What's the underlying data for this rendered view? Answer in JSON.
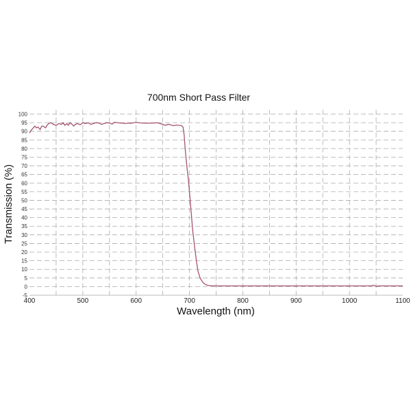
{
  "chart_data": {
    "type": "line",
    "title": "700nm Short Pass Filter",
    "xlabel": "Wavelength (nm)",
    "ylabel": "Transmission (%)",
    "xlim": [
      400,
      1100
    ],
    "ylim": [
      -5,
      100
    ],
    "xticks": [
      400,
      500,
      600,
      700,
      800,
      900,
      1000,
      1100
    ],
    "yticks": [
      -5,
      0,
      5,
      10,
      15,
      20,
      25,
      30,
      35,
      40,
      45,
      50,
      55,
      60,
      65,
      70,
      75,
      80,
      85,
      90,
      95,
      100
    ],
    "grid": true,
    "grid_style": "dashed",
    "line_color": "#a3546e",
    "series": [
      {
        "x": [
          400,
          403,
          407,
          410,
          413,
          416,
          420,
          423,
          426,
          430,
          433,
          436,
          440,
          445,
          450,
          455,
          460,
          463,
          466,
          470,
          473,
          476,
          480,
          483,
          486,
          490,
          495,
          500,
          505,
          510,
          515,
          520,
          525,
          530,
          535,
          540,
          545,
          550,
          555,
          560,
          565,
          570,
          575,
          580,
          585,
          590,
          595,
          600,
          610,
          620,
          630,
          640,
          645,
          650,
          655,
          660,
          665,
          670,
          675,
          680,
          685,
          688,
          690,
          692,
          695,
          698,
          700,
          703,
          706,
          710,
          713,
          716,
          720,
          725,
          730,
          735,
          740,
          750,
          800,
          850,
          900,
          950,
          1000,
          1040,
          1045,
          1050,
          1055,
          1100
        ],
        "y": [
          89,
          90.5,
          92,
          93,
          92,
          92.5,
          91,
          93,
          93,
          92,
          93.5,
          94.5,
          95,
          94,
          93.5,
          94.5,
          94,
          95,
          93.5,
          94.5,
          93.5,
          95,
          94,
          93,
          94,
          94.5,
          93.8,
          95,
          94.5,
          95,
          94,
          94.5,
          95,
          94.8,
          94,
          94.5,
          95,
          94.8,
          94.2,
          95.3,
          95,
          94.8,
          94.7,
          94.5,
          94.8,
          94.6,
          95,
          95.2,
          94.8,
          94.7,
          94.8,
          94.9,
          94.5,
          94,
          93.5,
          94,
          93.8,
          93.2,
          93.6,
          93.5,
          93.3,
          92.5,
          88,
          80,
          70,
          62,
          55,
          44,
          33,
          22,
          15,
          9,
          5,
          2.5,
          1.2,
          0.7,
          0.5,
          0.4,
          0.4,
          0.4,
          0.4,
          0.4,
          0.4,
          0.4,
          0.8,
          0.2,
          0.4,
          0.4
        ]
      }
    ]
  }
}
